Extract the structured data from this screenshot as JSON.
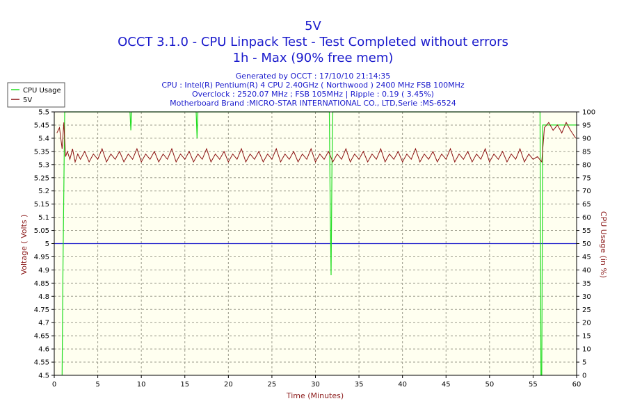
{
  "titles": {
    "line1": "5V",
    "line2": "OCCT 3.1.0 - CPU Linpack Test - Test Completed without errors",
    "line3": "1h - Max (90% free mem)"
  },
  "info": {
    "line1": "Generated by OCCT : 17/10/10 21:14:35",
    "line2": "CPU : Intel(R) Pentium(R) 4 CPU 2.40GHz ( Northwood ) 2400 MHz FSB 100MHz",
    "line3": "Overclock : 2520.07 MHz ; FSB 105MHz | Ripple : 0.19 ( 3.45%)",
    "line4": "Motherboard Brand :MICRO-STAR INTERNATIONAL CO., LTD,Serie :MS-6524"
  },
  "colors": {
    "title": "#1a1acc",
    "axis_label": "#8b1a1a",
    "cpu_series": "#22dd22",
    "voltage_series": "#8b1010",
    "reference_line": "#1a1acc",
    "plot_background": "#fffff0",
    "grid": "#9a9a8a"
  },
  "chart_data": {
    "type": "line",
    "xlabel": "Time (Minutes)",
    "ylabel": "Voltage ( Volts )",
    "y2label": "CPU Usage (in %)",
    "xlim": [
      0,
      60
    ],
    "ylim": [
      4.5,
      5.5
    ],
    "y2lim": [
      0,
      100
    ],
    "x_ticks": [
      "0",
      "5",
      "10",
      "15",
      "20",
      "25",
      "30",
      "35",
      "40",
      "45",
      "50",
      "55",
      "60"
    ],
    "y_ticks": [
      "4.5",
      "4.55",
      "4.6",
      "4.65",
      "4.7",
      "4.75",
      "4.8",
      "4.85",
      "4.9",
      "4.95",
      "5",
      "5.05",
      "5.1",
      "5.15",
      "5.2",
      "5.25",
      "5.3",
      "5.35",
      "5.4",
      "5.45",
      "5.5"
    ],
    "y2_ticks": [
      "0",
      "5",
      "10",
      "15",
      "20",
      "25",
      "30",
      "35",
      "40",
      "45",
      "50",
      "55",
      "60",
      "65",
      "70",
      "75",
      "80",
      "85",
      "90",
      "95",
      "100"
    ],
    "grid": true,
    "legend_position": "top-left",
    "reference_line": {
      "y": 5.0
    },
    "series": [
      {
        "name": "CPU Usage",
        "axis": "y2",
        "x": [
          0,
          0.9,
          1.0,
          1.2,
          1.5,
          2,
          3,
          8.7,
          8.8,
          8.9,
          16.3,
          16.4,
          16.5,
          31.6,
          31.7,
          31.8,
          31.9,
          32,
          40,
          55.5,
          55.8,
          55.9,
          56.0,
          56.1,
          60
        ],
        "values": [
          null,
          0,
          40,
          100,
          100,
          100,
          100,
          100,
          93,
          100,
          100,
          90,
          100,
          100,
          62,
          38,
          80,
          100,
          100,
          100,
          100,
          0,
          0,
          95,
          95
        ]
      },
      {
        "name": "5V",
        "axis": "y",
        "points": [
          [
            0.3,
            5.42
          ],
          [
            0.6,
            5.44
          ],
          [
            0.9,
            5.36
          ],
          [
            1.1,
            5.46
          ],
          [
            1.3,
            5.33
          ],
          [
            1.5,
            5.35
          ],
          [
            1.8,
            5.32
          ],
          [
            2.1,
            5.36
          ],
          [
            2.4,
            5.31
          ],
          [
            2.7,
            5.34
          ],
          [
            3,
            5.32
          ],
          [
            3.5,
            5.35
          ],
          [
            4,
            5.31
          ],
          [
            4.5,
            5.34
          ],
          [
            5,
            5.32
          ],
          [
            5.5,
            5.36
          ],
          [
            6,
            5.31
          ],
          [
            6.5,
            5.34
          ],
          [
            7,
            5.32
          ],
          [
            7.5,
            5.35
          ],
          [
            8,
            5.31
          ],
          [
            8.5,
            5.34
          ],
          [
            9,
            5.32
          ],
          [
            9.5,
            5.36
          ],
          [
            10,
            5.31
          ],
          [
            10.5,
            5.34
          ],
          [
            11,
            5.32
          ],
          [
            11.5,
            5.35
          ],
          [
            12,
            5.31
          ],
          [
            12.5,
            5.34
          ],
          [
            13,
            5.32
          ],
          [
            13.5,
            5.36
          ],
          [
            14,
            5.31
          ],
          [
            14.5,
            5.34
          ],
          [
            15,
            5.32
          ],
          [
            15.5,
            5.35
          ],
          [
            16,
            5.31
          ],
          [
            16.5,
            5.34
          ],
          [
            17,
            5.32
          ],
          [
            17.5,
            5.36
          ],
          [
            18,
            5.31
          ],
          [
            18.5,
            5.34
          ],
          [
            19,
            5.32
          ],
          [
            19.5,
            5.35
          ],
          [
            20,
            5.31
          ],
          [
            20.5,
            5.34
          ],
          [
            21,
            5.32
          ],
          [
            21.5,
            5.36
          ],
          [
            22,
            5.31
          ],
          [
            22.5,
            5.34
          ],
          [
            23,
            5.32
          ],
          [
            23.5,
            5.35
          ],
          [
            24,
            5.31
          ],
          [
            24.5,
            5.34
          ],
          [
            25,
            5.32
          ],
          [
            25.5,
            5.36
          ],
          [
            26,
            5.31
          ],
          [
            26.5,
            5.34
          ],
          [
            27,
            5.32
          ],
          [
            27.5,
            5.35
          ],
          [
            28,
            5.31
          ],
          [
            28.5,
            5.34
          ],
          [
            29,
            5.32
          ],
          [
            29.5,
            5.36
          ],
          [
            30,
            5.31
          ],
          [
            30.5,
            5.34
          ],
          [
            31,
            5.32
          ],
          [
            31.5,
            5.35
          ],
          [
            32,
            5.31
          ],
          [
            32.5,
            5.34
          ],
          [
            33,
            5.32
          ],
          [
            33.5,
            5.36
          ],
          [
            34,
            5.31
          ],
          [
            34.5,
            5.34
          ],
          [
            35,
            5.32
          ],
          [
            35.5,
            5.35
          ],
          [
            36,
            5.31
          ],
          [
            36.5,
            5.34
          ],
          [
            37,
            5.32
          ],
          [
            37.5,
            5.36
          ],
          [
            38,
            5.31
          ],
          [
            38.5,
            5.34
          ],
          [
            39,
            5.32
          ],
          [
            39.5,
            5.35
          ],
          [
            40,
            5.31
          ],
          [
            40.5,
            5.34
          ],
          [
            41,
            5.32
          ],
          [
            41.5,
            5.36
          ],
          [
            42,
            5.31
          ],
          [
            42.5,
            5.34
          ],
          [
            43,
            5.32
          ],
          [
            43.5,
            5.35
          ],
          [
            44,
            5.31
          ],
          [
            44.5,
            5.34
          ],
          [
            45,
            5.32
          ],
          [
            45.5,
            5.36
          ],
          [
            46,
            5.31
          ],
          [
            46.5,
            5.34
          ],
          [
            47,
            5.32
          ],
          [
            47.5,
            5.35
          ],
          [
            48,
            5.31
          ],
          [
            48.5,
            5.34
          ],
          [
            49,
            5.32
          ],
          [
            49.5,
            5.36
          ],
          [
            50,
            5.31
          ],
          [
            50.5,
            5.34
          ],
          [
            51,
            5.32
          ],
          [
            51.5,
            5.35
          ],
          [
            52,
            5.31
          ],
          [
            52.5,
            5.34
          ],
          [
            53,
            5.32
          ],
          [
            53.5,
            5.36
          ],
          [
            54,
            5.31
          ],
          [
            54.5,
            5.34
          ],
          [
            55,
            5.32
          ],
          [
            55.5,
            5.33
          ],
          [
            56,
            5.31
          ],
          [
            56.3,
            5.44
          ],
          [
            56.8,
            5.46
          ],
          [
            57.3,
            5.43
          ],
          [
            57.8,
            5.45
          ],
          [
            58.3,
            5.42
          ],
          [
            58.8,
            5.46
          ],
          [
            59.3,
            5.43
          ],
          [
            59.9,
            5.4
          ]
        ]
      }
    ]
  }
}
